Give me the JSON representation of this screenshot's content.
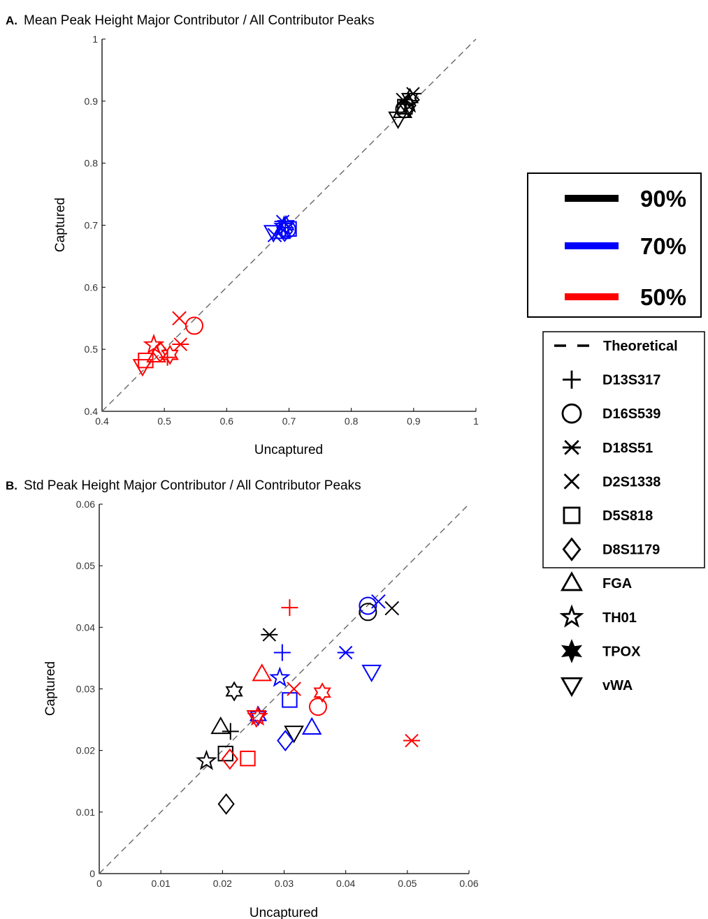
{
  "legend": {
    "colors": [
      {
        "label": "90%",
        "color": "#000000"
      },
      {
        "label": "70%",
        "color": "#0000ff"
      },
      {
        "label": "50%",
        "color": "#ff0000"
      }
    ],
    "markers": [
      {
        "label": "Theoretical",
        "icon": "dashed-line"
      },
      {
        "label": "D13S317",
        "icon": "plus"
      },
      {
        "label": "D16S539",
        "icon": "circle"
      },
      {
        "label": "D18S51",
        "icon": "asterisk"
      },
      {
        "label": "D2S1338",
        "icon": "x"
      },
      {
        "label": "D5S818",
        "icon": "square"
      },
      {
        "label": "D8S1179",
        "icon": "diamond"
      },
      {
        "label": "FGA",
        "icon": "triangle-up"
      },
      {
        "label": "TH01",
        "icon": "star"
      },
      {
        "label": "TPOX",
        "icon": "hexagram"
      },
      {
        "label": "vWA",
        "icon": "triangle-down"
      }
    ]
  },
  "chart_data": [
    {
      "type": "scatter",
      "panel": "A.",
      "title": "Mean Peak Height Major Contributor / All Contributor Peaks",
      "xlabel": "Uncaptured",
      "ylabel": "Captured",
      "xlim": [
        0.4,
        1
      ],
      "ylim": [
        0.4,
        1
      ],
      "xticks": [
        "0.4",
        "0.5",
        "0.6",
        "0.7",
        "0.8",
        "0.9",
        "1"
      ],
      "yticks": [
        "0.4",
        "0.5",
        "0.6",
        "0.7",
        "0.8",
        "0.9",
        "1"
      ],
      "grid": false,
      "reference_line": "y = x (Theoretical)",
      "series": [
        {
          "name": "90%",
          "color": "#000000",
          "points": [
            {
              "locus": "D13S317",
              "marker": "plus",
              "x": 0.888,
              "y": 0.895
            },
            {
              "locus": "D16S539",
              "marker": "circle",
              "x": 0.885,
              "y": 0.887
            },
            {
              "locus": "D18S51",
              "marker": "asterisk",
              "x": 0.899,
              "y": 0.912
            },
            {
              "locus": "D2S1338",
              "marker": "x",
              "x": 0.883,
              "y": 0.902
            },
            {
              "locus": "D5S818",
              "marker": "square",
              "x": 0.886,
              "y": 0.891
            },
            {
              "locus": "D8S1179",
              "marker": "diamond",
              "x": 0.891,
              "y": 0.893
            },
            {
              "locus": "FGA",
              "marker": "triangle-up",
              "x": 0.882,
              "y": 0.884
            },
            {
              "locus": "TH01",
              "marker": "star",
              "x": 0.893,
              "y": 0.896
            },
            {
              "locus": "TPOX",
              "marker": "hexagram",
              "x": 0.894,
              "y": 0.905
            },
            {
              "locus": "vWA",
              "marker": "triangle-down",
              "x": 0.875,
              "y": 0.872
            }
          ]
        },
        {
          "name": "70%",
          "color": "#0000ff",
          "points": [
            {
              "locus": "D13S317",
              "marker": "plus",
              "x": 0.694,
              "y": 0.696
            },
            {
              "locus": "D16S539",
              "marker": "circle",
              "x": 0.697,
              "y": 0.693
            },
            {
              "locus": "D18S51",
              "marker": "asterisk",
              "x": 0.69,
              "y": 0.706
            },
            {
              "locus": "D2S1338",
              "marker": "x",
              "x": 0.677,
              "y": 0.684
            },
            {
              "locus": "D5S818",
              "marker": "square",
              "x": 0.7,
              "y": 0.694
            },
            {
              "locus": "D8S1179",
              "marker": "diamond",
              "x": 0.693,
              "y": 0.69
            },
            {
              "locus": "FGA",
              "marker": "triangle-up",
              "x": 0.687,
              "y": 0.689
            },
            {
              "locus": "TH01",
              "marker": "star",
              "x": 0.692,
              "y": 0.698
            },
            {
              "locus": "TPOX",
              "marker": "hexagram",
              "x": 0.695,
              "y": 0.7
            },
            {
              "locus": "vWA",
              "marker": "triangle-down",
              "x": 0.675,
              "y": 0.689
            }
          ]
        },
        {
          "name": "50%",
          "color": "#ff0000",
          "points": [
            {
              "locus": "D13S317",
              "marker": "plus",
              "x": 0.505,
              "y": 0.487
            },
            {
              "locus": "D16S539",
              "marker": "circle",
              "x": 0.548,
              "y": 0.538
            },
            {
              "locus": "D18S51",
              "marker": "asterisk",
              "x": 0.526,
              "y": 0.508
            },
            {
              "locus": "D2S1338",
              "marker": "x",
              "x": 0.524,
              "y": 0.55
            },
            {
              "locus": "D5S818",
              "marker": "square",
              "x": 0.47,
              "y": 0.482
            },
            {
              "locus": "D8S1179",
              "marker": "diamond",
              "x": 0.493,
              "y": 0.496
            },
            {
              "locus": "FGA",
              "marker": "triangle-up",
              "x": 0.487,
              "y": 0.49
            },
            {
              "locus": "TH01",
              "marker": "star",
              "x": 0.483,
              "y": 0.507
            },
            {
              "locus": "TPOX",
              "marker": "hexagram",
              "x": 0.509,
              "y": 0.491
            },
            {
              "locus": "vWA",
              "marker": "triangle-down",
              "x": 0.465,
              "y": 0.473
            }
          ]
        }
      ]
    },
    {
      "type": "scatter",
      "panel": "B.",
      "title": "Std Peak Height Major Contributor / All Contributor Peaks",
      "xlabel": "Uncaptured",
      "ylabel": "Captured",
      "xlim": [
        0,
        0.06
      ],
      "ylim": [
        0,
        0.06
      ],
      "xticks": [
        "0",
        "0.01",
        "0.02",
        "0.03",
        "0.04",
        "0.05",
        "0.06"
      ],
      "yticks": [
        "0",
        "0.01",
        "0.02",
        "0.03",
        "0.04",
        "0.05",
        "0.06"
      ],
      "grid": false,
      "reference_line": "y = x (Theoretical)",
      "series": [
        {
          "name": "90%",
          "color": "#000000",
          "points": [
            {
              "locus": "D13S317",
              "marker": "plus",
              "x": 0.0213,
              "y": 0.0231
            },
            {
              "locus": "D16S539",
              "marker": "circle",
              "x": 0.0436,
              "y": 0.0425
            },
            {
              "locus": "D18S51",
              "marker": "asterisk",
              "x": 0.0276,
              "y": 0.0388
            },
            {
              "locus": "D2S1338",
              "marker": "x",
              "x": 0.0475,
              "y": 0.0431
            },
            {
              "locus": "D5S818",
              "marker": "square",
              "x": 0.0205,
              "y": 0.0195
            },
            {
              "locus": "D8S1179",
              "marker": "diamond",
              "x": 0.0206,
              "y": 0.0113
            },
            {
              "locus": "FGA",
              "marker": "triangle-up",
              "x": 0.0197,
              "y": 0.0238
            },
            {
              "locus": "TH01",
              "marker": "star",
              "x": 0.0174,
              "y": 0.0183
            },
            {
              "locus": "TPOX",
              "marker": "hexagram",
              "x": 0.0219,
              "y": 0.0296
            },
            {
              "locus": "vWA",
              "marker": "triangle-down",
              "x": 0.0316,
              "y": 0.0229
            }
          ]
        },
        {
          "name": "70%",
          "color": "#0000ff",
          "points": [
            {
              "locus": "D13S317",
              "marker": "plus",
              "x": 0.0297,
              "y": 0.0359
            },
            {
              "locus": "D16S539",
              "marker": "circle",
              "x": 0.0436,
              "y": 0.0435
            },
            {
              "locus": "D18S51",
              "marker": "asterisk",
              "x": 0.04,
              "y": 0.0359
            },
            {
              "locus": "D2S1338",
              "marker": "x",
              "x": 0.0453,
              "y": 0.0442
            },
            {
              "locus": "D5S818",
              "marker": "square",
              "x": 0.0309,
              "y": 0.0282
            },
            {
              "locus": "D8S1179",
              "marker": "diamond",
              "x": 0.0302,
              "y": 0.0216
            },
            {
              "locus": "FGA",
              "marker": "triangle-up",
              "x": 0.0345,
              "y": 0.0237
            },
            {
              "locus": "TH01",
              "marker": "star",
              "x": 0.0293,
              "y": 0.0318
            },
            {
              "locus": "TPOX",
              "marker": "hexagram",
              "x": 0.0258,
              "y": 0.0256
            },
            {
              "locus": "vWA",
              "marker": "triangle-down",
              "x": 0.0442,
              "y": 0.0328
            }
          ]
        },
        {
          "name": "50%",
          "color": "#ff0000",
          "points": [
            {
              "locus": "D13S317",
              "marker": "plus",
              "x": 0.0309,
              "y": 0.0432
            },
            {
              "locus": "D16S539",
              "marker": "circle",
              "x": 0.0355,
              "y": 0.0271
            },
            {
              "locus": "D18S51",
              "marker": "asterisk",
              "x": 0.0507,
              "y": 0.0216
            },
            {
              "locus": "D2S1338",
              "marker": "x",
              "x": 0.0316,
              "y": 0.03
            },
            {
              "locus": "D5S818",
              "marker": "square",
              "x": 0.0241,
              "y": 0.0187
            },
            {
              "locus": "D8S1179",
              "marker": "diamond",
              "x": 0.0212,
              "y": 0.0186
            },
            {
              "locus": "FGA",
              "marker": "triangle-up",
              "x": 0.0264,
              "y": 0.0324
            },
            {
              "locus": "TH01",
              "marker": "star",
              "x": 0.0257,
              "y": 0.0255
            },
            {
              "locus": "TPOX",
              "marker": "hexagram",
              "x": 0.0362,
              "y": 0.0294
            },
            {
              "locus": "vWA",
              "marker": "triangle-down",
              "x": 0.0255,
              "y": 0.0254
            }
          ]
        }
      ]
    }
  ]
}
